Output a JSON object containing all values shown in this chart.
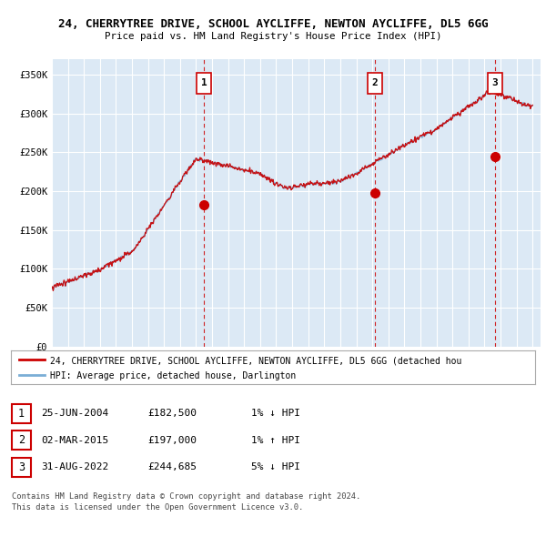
{
  "title1": "24, CHERRYTREE DRIVE, SCHOOL AYCLIFFE, NEWTON AYCLIFFE, DL5 6GG",
  "title2": "Price paid vs. HM Land Registry's House Price Index (HPI)",
  "ylim": [
    0,
    370000
  ],
  "yticks": [
    0,
    50000,
    100000,
    150000,
    200000,
    250000,
    300000,
    350000
  ],
  "ytick_labels": [
    "£0",
    "£50K",
    "£100K",
    "£150K",
    "£200K",
    "£250K",
    "£300K",
    "£350K"
  ],
  "sale_year_nums": [
    2004.48,
    2015.16,
    2022.66
  ],
  "sale_prices": [
    182500,
    197000,
    244685
  ],
  "sale_labels": [
    "1",
    "2",
    "3"
  ],
  "legend_line1": "24, CHERRYTREE DRIVE, SCHOOL AYCLIFFE, NEWTON AYCLIFFE, DL5 6GG (detached hou",
  "legend_line2": "HPI: Average price, detached house, Darlington",
  "table_rows": [
    [
      "1",
      "25-JUN-2004",
      "£182,500",
      "1% ↓ HPI"
    ],
    [
      "2",
      "02-MAR-2015",
      "£197,000",
      "1% ↑ HPI"
    ],
    [
      "3",
      "31-AUG-2022",
      "£244,685",
      "5% ↓ HPI"
    ]
  ],
  "footnote1": "Contains HM Land Registry data © Crown copyright and database right 2024.",
  "footnote2": "This data is licensed under the Open Government Licence v3.0.",
  "red_color": "#cc0000",
  "blue_color": "#7aaed6",
  "bg_color": "#dce9f5",
  "grid_color": "#ffffff",
  "vline_color": "#cc0000",
  "xlim_start": 1995.0,
  "xlim_end": 2025.5
}
